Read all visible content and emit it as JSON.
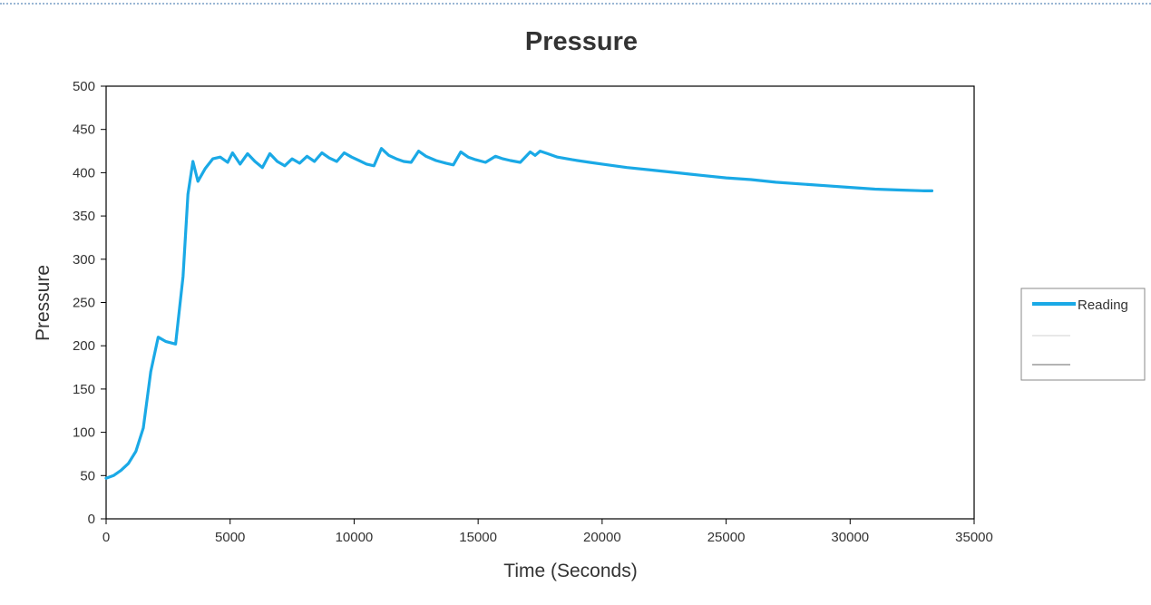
{
  "chart_data": {
    "type": "line",
    "title": "Pressure",
    "xlabel": "Time (Seconds)",
    "ylabel": "Pressure",
    "xlim": [
      0,
      35000
    ],
    "ylim": [
      0,
      500
    ],
    "xticks": [
      0,
      5000,
      10000,
      15000,
      20000,
      25000,
      30000,
      35000
    ],
    "yticks": [
      0,
      50,
      100,
      150,
      200,
      250,
      300,
      350,
      400,
      450,
      500
    ],
    "xtick_labels": [
      "0",
      "5000",
      "10000",
      "15000",
      "20000",
      "25000",
      "30000",
      "35000"
    ],
    "ytick_labels": [
      "0",
      "50",
      "100",
      "150",
      "200",
      "250",
      "300",
      "350",
      "400",
      "450",
      "500"
    ],
    "grid": false,
    "legend_position": "right",
    "series": [
      {
        "name": "Reading",
        "color": "#1aa9e6",
        "x": [
          0,
          300,
          600,
          900,
          1200,
          1500,
          1800,
          2100,
          2400,
          2800,
          3100,
          3300,
          3500,
          3700,
          4000,
          4300,
          4600,
          4900,
          5100,
          5400,
          5700,
          6000,
          6300,
          6600,
          6900,
          7200,
          7500,
          7800,
          8100,
          8400,
          8700,
          9000,
          9300,
          9600,
          9900,
          10200,
          10500,
          10800,
          11100,
          11400,
          11700,
          12000,
          12300,
          12600,
          12900,
          13300,
          13700,
          14000,
          14300,
          14600,
          14900,
          15300,
          15700,
          16000,
          16300,
          16700,
          17100,
          17300,
          17500,
          17800,
          18200,
          18800,
          19500,
          20000,
          21000,
          22000,
          23000,
          24000,
          25000,
          26000,
          27000,
          28000,
          29000,
          30000,
          31000,
          32000,
          33000,
          33300
        ],
        "y": [
          47,
          50,
          56,
          64,
          78,
          105,
          170,
          210,
          205,
          202,
          280,
          375,
          413,
          390,
          405,
          416,
          418,
          412,
          423,
          410,
          422,
          413,
          406,
          422,
          413,
          408,
          416,
          411,
          419,
          413,
          423,
          417,
          413,
          423,
          418,
          414,
          410,
          408,
          428,
          420,
          416,
          413,
          412,
          425,
          419,
          414,
          411,
          409,
          424,
          418,
          415,
          412,
          419,
          416,
          414,
          412,
          424,
          420,
          425,
          422,
          418,
          415,
          412,
          410,
          406,
          403,
          400,
          397,
          394,
          392,
          389,
          387,
          385,
          383,
          381,
          380,
          379,
          379
        ]
      },
      {
        "name": "",
        "color": "#d0d0d0"
      },
      {
        "name": "",
        "color": "#6a6a6a"
      }
    ]
  }
}
